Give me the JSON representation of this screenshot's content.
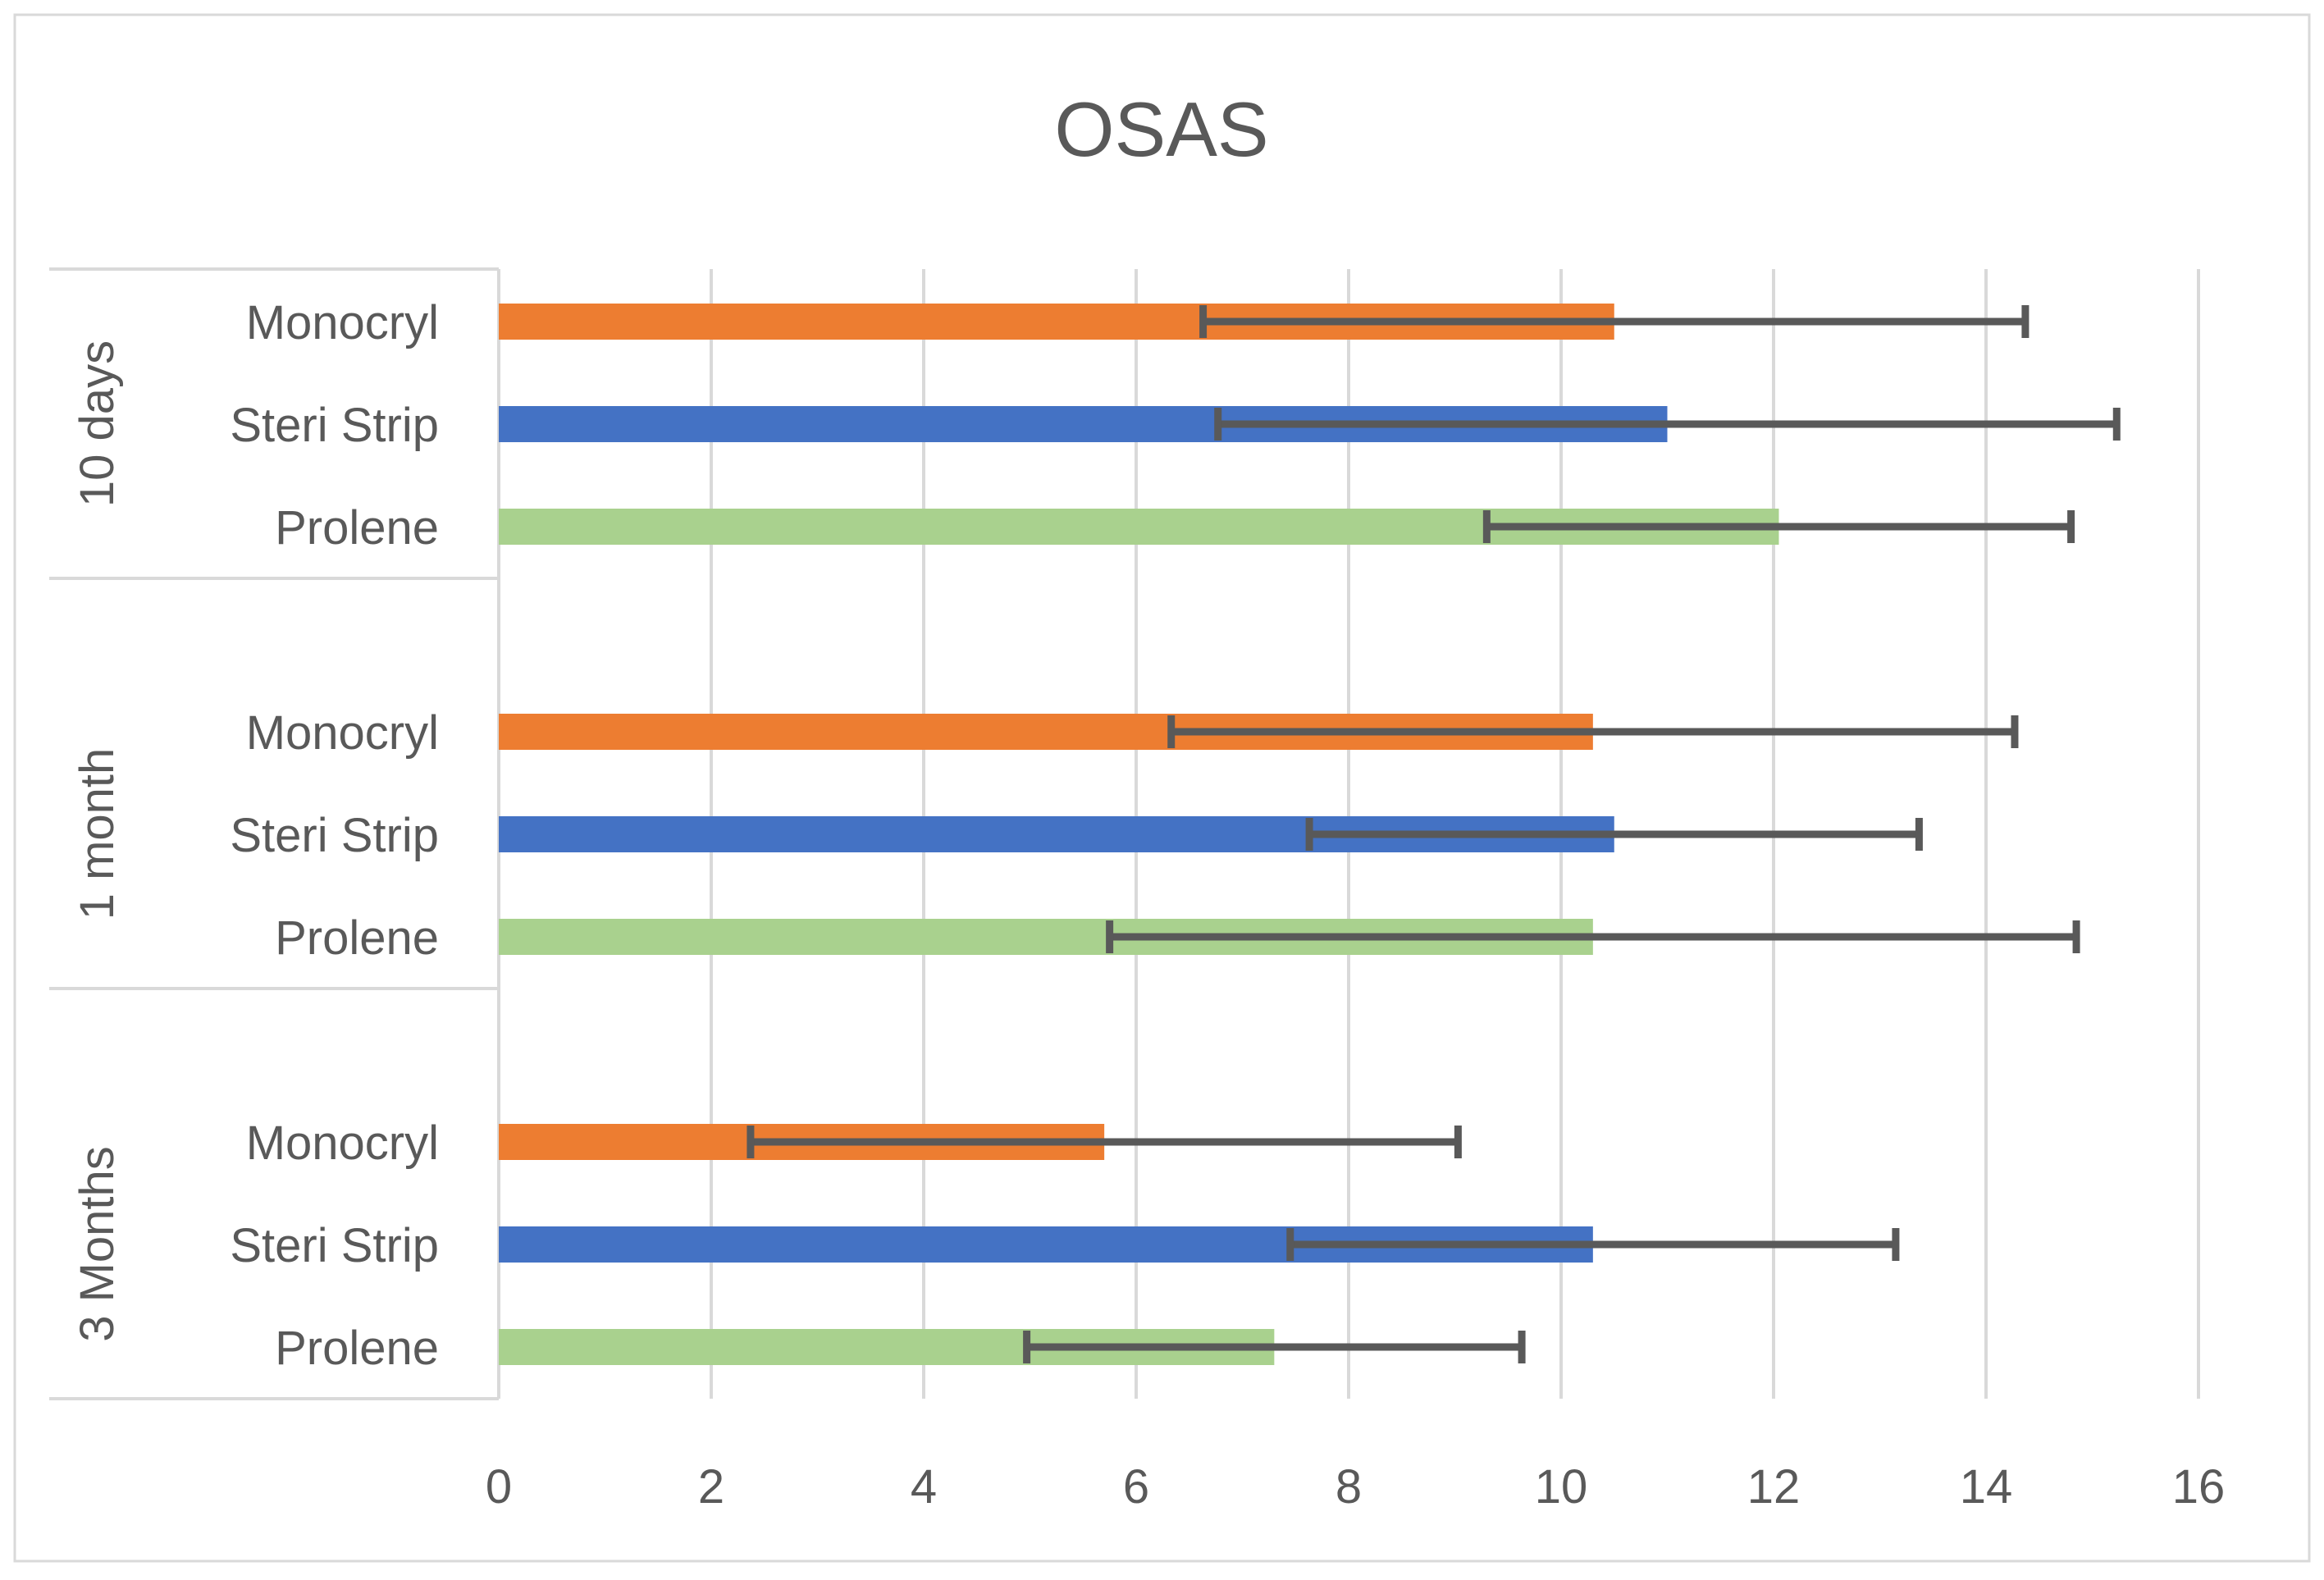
{
  "chart_data": {
    "type": "bar",
    "orientation": "horizontal",
    "title": "OSAS",
    "xlim": [
      0,
      16
    ],
    "x_ticks": [
      "0",
      "2",
      "4",
      "6",
      "8",
      "10",
      "12",
      "14",
      "16"
    ],
    "grid": "vertical",
    "legend": "none",
    "groups": [
      {
        "label": "10 days",
        "bars": [
          {
            "category": "Monocryl",
            "value": 10.5,
            "error": 3.87
          },
          {
            "category": "Steri Strip",
            "value": 11.0,
            "error": 4.23
          },
          {
            "category": "Prolene",
            "value": 12.05,
            "error": 2.75
          }
        ]
      },
      {
        "label": "1 month",
        "bars": [
          {
            "category": "Monocryl",
            "value": 10.3,
            "error": 3.97
          },
          {
            "category": "Steri Strip",
            "value": 10.5,
            "error": 2.87
          },
          {
            "category": "Prolene",
            "value": 10.3,
            "error": 4.55
          }
        ]
      },
      {
        "label": "3 Months",
        "bars": [
          {
            "category": "Monocryl",
            "value": 5.7,
            "error": 3.33
          },
          {
            "category": "Steri Strip",
            "value": 10.3,
            "error": 2.85
          },
          {
            "category": "Prolene",
            "value": 7.3,
            "error": 2.33
          }
        ]
      }
    ],
    "colors": {
      "Monocryl": "#ED7D31",
      "Steri Strip": "#4472C4",
      "Prolene": "#A9D18E",
      "error_bar": "#595959",
      "gridline": "#D9D9D9",
      "text": "#595959"
    }
  }
}
